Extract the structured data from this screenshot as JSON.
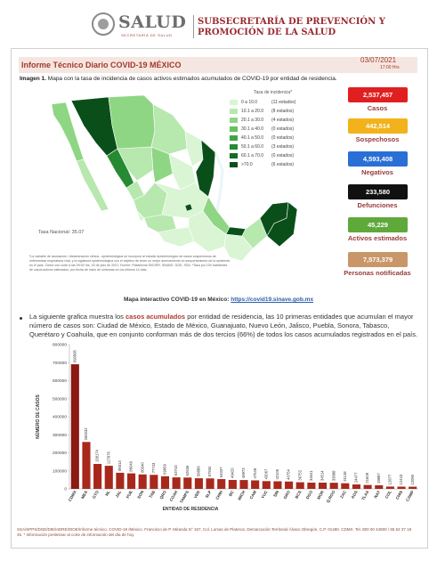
{
  "header": {
    "brand": "SALUD",
    "brand_sub": "SECRETARÍA DE SALUD",
    "subsecretaria": "SUBSECRETARÍA DE PREVENCIÓN Y PROMOCIÓN DE LA SALUD"
  },
  "report": {
    "title": "Informe Técnico Diario COVID-19 MÉXICO",
    "date": "03/07/2021",
    "time": "17:00 Hrs",
    "image_label": "Imagen 1.",
    "image_caption": " Mapa con la tasa de incidencia de casos activos estimados acumulados de COVID-19 por entidad de residencia."
  },
  "map": {
    "legend_title": "Tasa de incidencia*",
    "legend": [
      {
        "range": "0  a  10.0",
        "count": "(11 estados)",
        "color": "#d9f5d3"
      },
      {
        "range": "10.1 a  20.0",
        "count": "(8 estados)",
        "color": "#b7e8ae"
      },
      {
        "range": "20.1 a  30.0",
        "count": "(4 estados)",
        "color": "#8fd684"
      },
      {
        "range": "30.1 a  40.0",
        "count": "(0 estados)",
        "color": "#66c15e"
      },
      {
        "range": "40.1 a  50.0",
        "count": "(0 estados)",
        "color": "#41a443"
      },
      {
        "range": "50.1 a  60.0",
        "count": "(3 estados)",
        "color": "#268a33"
      },
      {
        "range": "60.1 a  70.0",
        "count": "(0 estados)",
        "color": "#136b26"
      },
      {
        "range": ">70.0",
        "count": "(6 estados)",
        "color": "#0a4f1a"
      }
    ],
    "national_rate": "Tasa Nacional: 35.07",
    "notes": "*La variable de asociación / dictaminación clínica - epidemiológica se incorporó al estudio epidemiológico de casos sospechosos de enfermedad respiratoria viral, y la vigilancia epidemiológica con el objetivo de tener un mejor acercamiento al comportamiento de la epidemia en el país. Cierre con corte a las 09:00 hrs, 03 de julio de 2021. Fuente: Plataforma SISVER. SINAVE, DGE, SSA. *Tasa por 100 habitantes de casos activos estimados, por fecha de inicio de síntomas en los últimos 14 días."
  },
  "stats": [
    {
      "value": "2,537,457",
      "label": "Casos",
      "color": "#e02020"
    },
    {
      "value": "442,514",
      "label": "Sospechosos",
      "color": "#f2b21b"
    },
    {
      "value": "4,593,408",
      "label": "Negativos",
      "color": "#2a6fd6"
    },
    {
      "value": "233,580",
      "label": "Defunciones",
      "color": "#111111"
    },
    {
      "value": "45,229",
      "label": "Activos estimados",
      "color": "#5fa83a"
    },
    {
      "value": "7,573,379",
      "label": "Personas notificadas",
      "color": "#c9966a"
    }
  ],
  "interactive": {
    "prefix": "Mapa interactivo COVID-19 en México: ",
    "url": "https://covid19.sinave.gob.mx"
  },
  "paragraph": {
    "part1": "La siguiente grafica muestra los ",
    "highlight": "casos acumulados",
    "part2": " por entidad de residencia, las 10 primeras entidades que acumulan el mayor número de casos son: Ciudad de México, Estado de México, Guanajuato, Nuevo León, Jalisco, Puebla, Sonora, Tabasco, Querétaro y Coahuila, que en conjunto conforman más de dos tercios (66%) de todos los casos acumulados registrados en el país."
  },
  "footer": "SSA/SPPS/DGE/DIE/InDRE/DIOE/Informe técnico. COVID-19 /México. Francisco de P. Miranda N° 157, Col. Lomas de Plateros, Demarcación Territorial Álvaro Obregón, C.P. 01480. CDMX. Tel. 800 00 44800 / 55 52 37 18 45. * Información preliminar al corte de información del día de hoy.",
  "chart_data": {
    "type": "bar",
    "ylabel": "NÚMERO DE CASOS",
    "xlabel": "ENTIDAD DE RESIDENCIA",
    "ylim": [
      0,
      800000
    ],
    "yticks": [
      "0",
      "100000",
      "200000",
      "300000",
      "400000",
      "500000",
      "600000",
      "700000",
      "800000"
    ],
    "categories": [
      "CDMX",
      "MEX",
      "GTO",
      "NL",
      "JAL",
      "PUE",
      "SON",
      "TAB",
      "QRO",
      "COAH",
      "TAMPS",
      "VER",
      "SLP",
      "CHIH",
      "BC",
      "MICH",
      "CAM",
      "YUC",
      "SIN",
      "GRO",
      "BCS",
      "DGO",
      "MOR",
      "Q.ROO",
      "ZAC",
      "AGS",
      "TLAX",
      "NAY",
      "COL",
      "CHIS",
      "CAMP"
    ],
    "values": [
      690995,
      260032,
      138174,
      127976,
      89313,
      86040,
      80040,
      77743,
      69959,
      63743,
      62636,
      58889,
      57934,
      54037,
      49420,
      48973,
      47049,
      43067,
      42105,
      40754,
      36752,
      34641,
      34514,
      33888,
      31148,
      24477,
      21609,
      19887,
      12877,
      12443,
      12090
    ],
    "labels": [
      "690995",
      "260032",
      "138174",
      "127976",
      "89313",
      "86040",
      "80040",
      "77743",
      "69959",
      "63743",
      "62636",
      "58889",
      "57934",
      "54037",
      "49420",
      "48973",
      "47049",
      "43067",
      "42105",
      "40754",
      "36752",
      "34641",
      "34514",
      "33888",
      "31148",
      "24477",
      "21609",
      "19887",
      "12877",
      "12443",
      "12090"
    ],
    "bar_colors": [
      "#8b1a12",
      "#a8281c"
    ]
  }
}
